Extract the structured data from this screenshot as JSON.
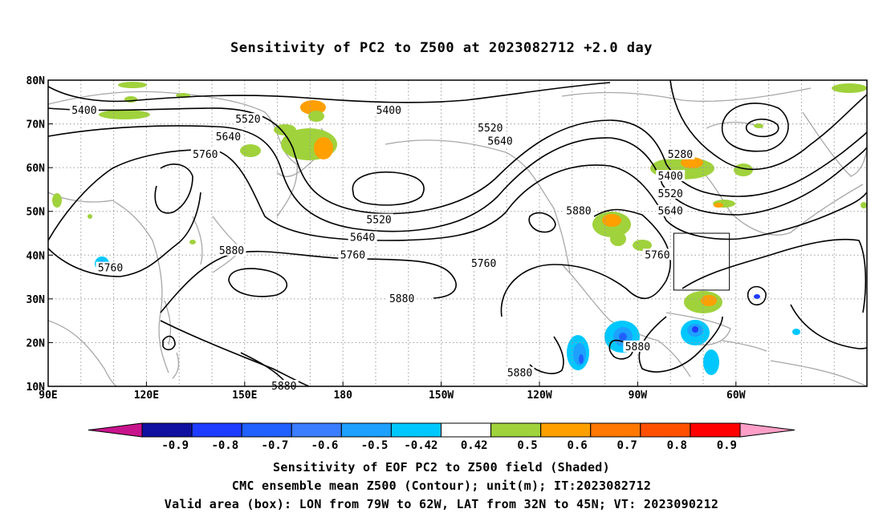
{
  "title": "Sensitivity of PC2 to Z500 at 2023082712 +2.0 day",
  "map": {
    "lon_labels": [
      "90E",
      "120E",
      "150E",
      "180",
      "150W",
      "120W",
      "90W",
      "60W"
    ],
    "lat_labels": [
      "80N",
      "70N",
      "60N",
      "50N",
      "40N",
      "30N",
      "20N",
      "10N"
    ],
    "contour_labels": [
      {
        "text": "5400",
        "lon": 101,
        "lat": 73
      },
      {
        "text": "5400",
        "lon": 194,
        "lat": 73
      },
      {
        "text": "5400",
        "lon": 280,
        "lat": 58
      },
      {
        "text": "5520",
        "lon": 151,
        "lat": 71
      },
      {
        "text": "5520",
        "lon": 225,
        "lat": 69
      },
      {
        "text": "5520",
        "lon": 191,
        "lat": 48
      },
      {
        "text": "5520",
        "lon": 280,
        "lat": 54
      },
      {
        "text": "5640",
        "lon": 145,
        "lat": 67
      },
      {
        "text": "5640",
        "lon": 228,
        "lat": 66
      },
      {
        "text": "5640",
        "lon": 186,
        "lat": 44
      },
      {
        "text": "5640",
        "lon": 280,
        "lat": 50
      },
      {
        "text": "5760",
        "lon": 138,
        "lat": 63
      },
      {
        "text": "5760",
        "lon": 183,
        "lat": 40
      },
      {
        "text": "5760",
        "lon": 223,
        "lat": 38
      },
      {
        "text": "5760",
        "lon": 109,
        "lat": 37
      },
      {
        "text": "5760",
        "lon": 276,
        "lat": 40
      },
      {
        "text": "5880",
        "lon": 146,
        "lat": 41
      },
      {
        "text": "5880",
        "lon": 198,
        "lat": 30
      },
      {
        "text": "5880",
        "lon": 252,
        "lat": 50
      },
      {
        "text": "5880",
        "lon": 270,
        "lat": 19
      },
      {
        "text": "5880",
        "lon": 234,
        "lat": 13
      },
      {
        "text": "5880",
        "lon": 162,
        "lat": 10
      },
      {
        "text": "5280",
        "lon": 283,
        "lat": 63
      }
    ],
    "valid_box": {
      "lon_west": -79,
      "lon_east": -62,
      "lat_south": 32,
      "lat_north": 45
    }
  },
  "colorbar": {
    "labels": [
      "-0.9",
      "-0.8",
      "-0.7",
      "-0.6",
      "-0.5",
      "-0.42",
      "0.42",
      "0.5",
      "0.6",
      "0.7",
      "0.8",
      "0.9"
    ],
    "colors": [
      "#1010a0",
      "#1e3cff",
      "#2060ff",
      "#3a7dff",
      "#1ea0ff",
      "#00c8ff",
      "#ffffff",
      "#a0d23c",
      "#ffa000",
      "#ff7800",
      "#ff5000",
      "#ff0000"
    ],
    "low_color": "#c8148c",
    "high_color": "#ff9fc8"
  },
  "captions": {
    "line1": "Sensitivity of EOF PC2 to Z500 field (Shaded)",
    "line2": "CMC ensemble mean Z500 (Contour); unit(m); IT:2023082712",
    "line3": "Valid area (box): LON from 79W to 62W, LAT from 32N to 45N; VT: 2023090212"
  }
}
